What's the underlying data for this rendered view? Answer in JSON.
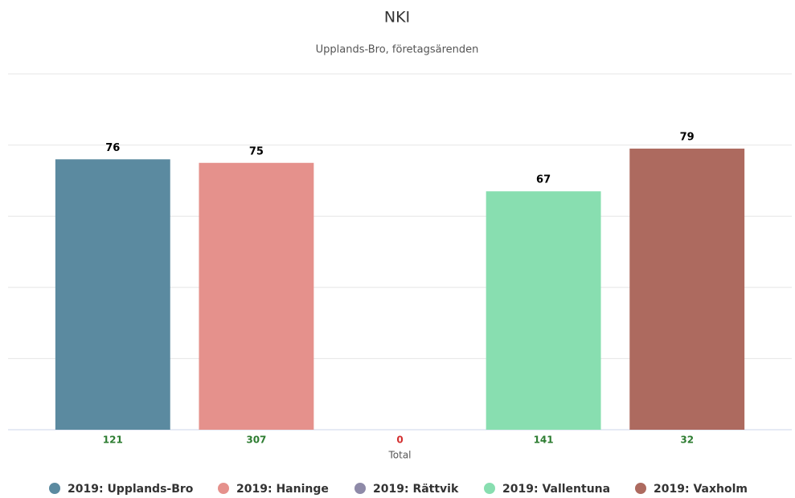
{
  "chart_data": {
    "type": "bar",
    "title": "NKI",
    "subtitle": "Upplands-Bro, företagsärenden",
    "categories": [
      "Total"
    ],
    "series": [
      {
        "name": "2019: Upplands-Bro",
        "color": "#5b8aa0",
        "values": [
          76
        ],
        "count": 121,
        "count_color": "#2e7d32"
      },
      {
        "name": "2019: Haninge",
        "color": "#e5918c",
        "values": [
          75
        ],
        "count": 307,
        "count_color": "#2e7d32"
      },
      {
        "name": "2019: Rättvik",
        "color": "#8e8aa8",
        "values": [
          null
        ],
        "count": 0,
        "count_color": "#d32f2f"
      },
      {
        "name": "2019: Vallentuna",
        "color": "#88deb0",
        "values": [
          67
        ],
        "count": 141,
        "count_color": "#2e7d32"
      },
      {
        "name": "2019: Vaxholm",
        "color": "#ad6a5f",
        "values": [
          79
        ],
        "count": 32,
        "count_color": "#2e7d32"
      }
    ],
    "ylim": [
      0,
      100
    ],
    "yticks": [
      0,
      20,
      40,
      60,
      80,
      100
    ],
    "grid": true,
    "legend": "bottom"
  }
}
